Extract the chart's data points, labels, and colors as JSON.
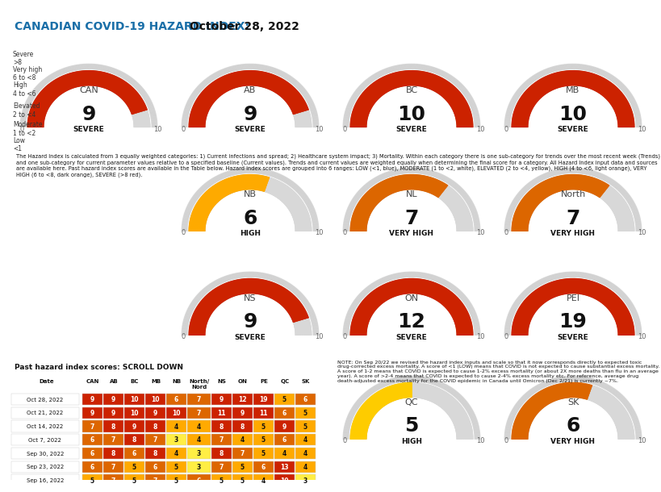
{
  "title_prefix": "CANADIAN COVID-19 HAZARD INDEX:",
  "title_date": " October 28, 2022",
  "title_color": "#1a6fa8",
  "title_bg": "#ddeeff",
  "gauges": [
    {
      "label": "CAN",
      "value": 9,
      "category": "SEVERE",
      "color": "#cc2200"
    },
    {
      "label": "AB",
      "value": 9,
      "category": "SEVERE",
      "color": "#cc2200"
    },
    {
      "label": "BC",
      "value": 10,
      "category": "SEVERE",
      "color": "#cc2200"
    },
    {
      "label": "MB",
      "value": 10,
      "category": "SEVERE",
      "color": "#cc2200"
    },
    {
      "label": "NB",
      "value": 6,
      "category": "HIGH",
      "color": "#ffaa00"
    },
    {
      "label": "NL",
      "value": 7,
      "category": "VERY HIGH",
      "color": "#dd6600"
    },
    {
      "label": "North",
      "value": 7,
      "category": "VERY HIGH",
      "color": "#dd6600"
    },
    {
      "label": "NS",
      "value": 9,
      "category": "SEVERE",
      "color": "#cc2200"
    },
    {
      "label": "ON",
      "value": 12,
      "category": "SEVERE",
      "color": "#cc2200"
    },
    {
      "label": "PEI",
      "value": 19,
      "category": "SEVERE",
      "color": "#cc2200"
    },
    {
      "label": "QC",
      "value": 5,
      "category": "HIGH",
      "color": "#ffcc00"
    },
    {
      "label": "SK",
      "value": 6,
      "category": "VERY HIGH",
      "color": "#dd6600"
    }
  ],
  "legend_labels": [
    "Low\n<1",
    "Moderate\n1 to <2",
    "Elevated\n2 to <4",
    "High\n4 to <6",
    "Very high\n6 to <8",
    "Severe\n>8"
  ],
  "legend_colors": [
    "#4477cc",
    "#ffffff",
    "#ffee44",
    "#ffaa00",
    "#dd6600",
    "#cc2200"
  ],
  "desc_text": "The Hazard Index is calculated from 3 equally weighted categories: 1) Current infections and spread; 2) Healthcare system impact; 3) Mortality. Within each category there is one sub-category for trends over the most recent week (Trends) and one sub-category for current parameter values relative to a specified baseline (Current values). Trends and current values are weighted equally when determining the final score for a category. All Hazard Index input data and sources are available here. Past hazard index scores are available in the Table below. Hazard index scores are grouped into 6 ranges: LOW (<1, blue), MODERATE (1 to <2, white), ELEVATED (2 to <4, yellow), HIGH (4 to <6, light orange), VERY HIGH (6 to <8, dark orange), SEVERE (>8 red).",
  "table_title": "Past hazard index scores: SCROLL DOWN",
  "table_headers": [
    "Date",
    "CAN",
    "AB",
    "BC",
    "MB",
    "NB",
    "North/\nNord",
    "NS",
    "ON",
    "PE",
    "QC",
    "SK"
  ],
  "table_data": [
    [
      "Oct 28, 2022",
      9,
      9,
      10,
      10,
      6,
      7,
      9,
      12,
      19,
      5,
      6
    ],
    [
      "Oct 21, 2022",
      9,
      9,
      10,
      9,
      10,
      7,
      11,
      9,
      11,
      6,
      5
    ],
    [
      "Oct 14, 2022",
      7,
      8,
      9,
      8,
      4,
      4,
      8,
      8,
      5,
      9,
      5
    ],
    [
      "Oct 7, 2022",
      6,
      7,
      8,
      7,
      3,
      4,
      7,
      4,
      5,
      6,
      4
    ],
    [
      "Sep 30, 2022",
      6,
      8,
      6,
      8,
      4,
      3,
      8,
      7,
      5,
      4,
      4
    ],
    [
      "Sep 23, 2022",
      6,
      7,
      5,
      6,
      5,
      3,
      7,
      5,
      6,
      13,
      4
    ],
    [
      "Sep 16, 2022",
      5,
      7,
      5,
      7,
      5,
      6,
      5,
      5,
      4,
      10,
      3
    ]
  ],
  "note_text": "NOTE: On Sep 20/22 we revised the hazard index inputs and scale so that it now corresponds directly to expected toxic drug-corrected excess mortality. A score of <1 (LOW) means that COVID is not expected to cause substantial excess mortality. A score of 1-2 means that COVID is expected to cause 1-2% excess mortality (or about 2X more deaths than flu in an average year). A score of >2-4 means that COVID is expected to cause 2-4% excess mortality etc. For reference, average drug death-adjusted excess mortality for the COVID epidemic in Canada until Omicron (Dec 2/21) is currently ~7%.",
  "gauge_bg": "#cccccc",
  "gauge_track": "#e8e8e8",
  "score_color": "#111111",
  "category_color": "#111111"
}
